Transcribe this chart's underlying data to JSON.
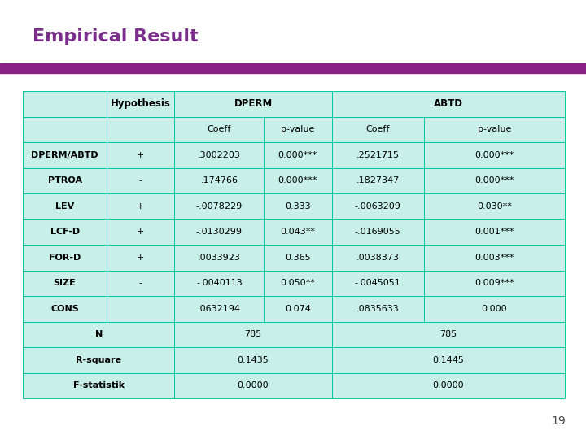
{
  "title": "Empirical Result",
  "title_color": "#7B2D8B",
  "title_bar_color": "#882288",
  "background_color": "#FFFFFF",
  "table_bg": "#C8F0E8",
  "border_color": "#00C8A0",
  "page_number": "19",
  "rows": [
    [
      "DPERM/ABTD",
      "+",
      ".3002203",
      "0.000***",
      ".2521715",
      "0.000***"
    ],
    [
      "PTROA",
      "-",
      ".174766",
      "0.000***",
      ".1827347",
      "0.000***"
    ],
    [
      "LEV",
      "+",
      "-.0078229",
      "0.333",
      "-.0063209",
      "0.030**"
    ],
    [
      "LCF-D",
      "+",
      "-.0130299",
      "0.043**",
      "-.0169055",
      "0.001***"
    ],
    [
      "FOR-D",
      "+",
      ".0033923",
      "0.365",
      ".0038373",
      "0.003***"
    ],
    [
      "SIZE",
      "-",
      "-.0040113",
      "0.050**",
      "-.0045051",
      "0.009***"
    ],
    [
      "CONS",
      "",
      ".0632194",
      "0.074",
      ".0835633",
      "0.000"
    ]
  ],
  "bottom_rows": [
    [
      "N",
      "785",
      "785"
    ],
    [
      "R-square",
      "0.1435",
      "0.1445"
    ],
    [
      "F-statistik",
      "0.0000",
      "0.0000"
    ]
  ]
}
